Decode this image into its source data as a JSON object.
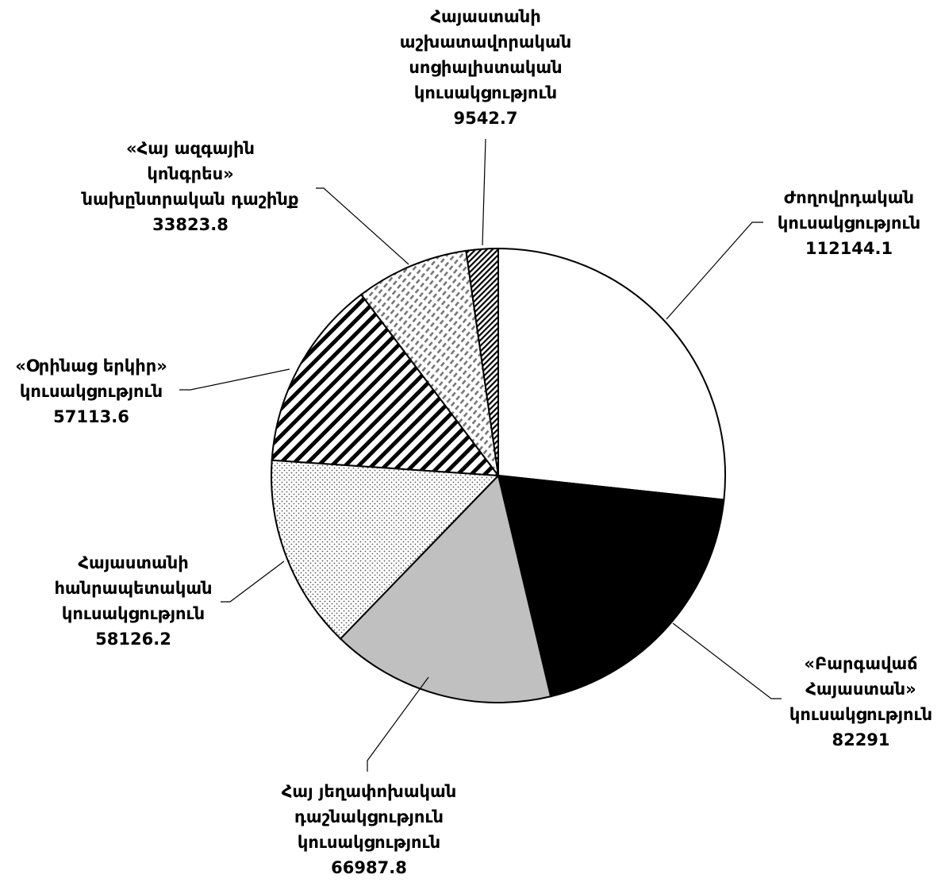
{
  "chart_data": {
    "type": "pie",
    "title": "",
    "slices": [
      {
        "lines": [
          "Ժողովրդական",
          "կուսակցություն"
        ],
        "value": 112144.1,
        "value_label": "112144.1",
        "pattern": "solid-white"
      },
      {
        "lines": [
          "«Բարգավաճ",
          "Հայաստան»",
          "կուսակցություն"
        ],
        "value": 82291,
        "value_label": "82291",
        "pattern": "solid-black"
      },
      {
        "lines": [
          "Հայ յեղափոխական",
          "դաշնակցություն",
          "կուսակցություն"
        ],
        "value": 66987.8,
        "value_label": "66987.8",
        "pattern": "solid-gray"
      },
      {
        "lines": [
          "Հայաստանի",
          "հանրապետական",
          "կուսակցություն"
        ],
        "value": 58126.2,
        "value_label": "58126.2",
        "pattern": "dots"
      },
      {
        "lines": [
          "«Օրինաց երկիր»",
          "կուսակցություն"
        ],
        "value": 57113.6,
        "value_label": "57113.6",
        "pattern": "wide-diagonal"
      },
      {
        "lines": [
          "«Հայ ազգային",
          "կոնգրես»",
          "նախընտրական դաշինք"
        ],
        "value": 33823.8,
        "value_label": "33823.8",
        "pattern": "dashed-diagonal"
      },
      {
        "lines": [
          "Հայաստանի",
          "աշխատավորական",
          "սոցիալիստական",
          "կուսակցություն"
        ],
        "value": 9542.7,
        "value_label": "9542.7",
        "pattern": "fine-diagonal"
      }
    ],
    "start": "12 o'clock",
    "direction": "clockwise",
    "legend": "none"
  }
}
